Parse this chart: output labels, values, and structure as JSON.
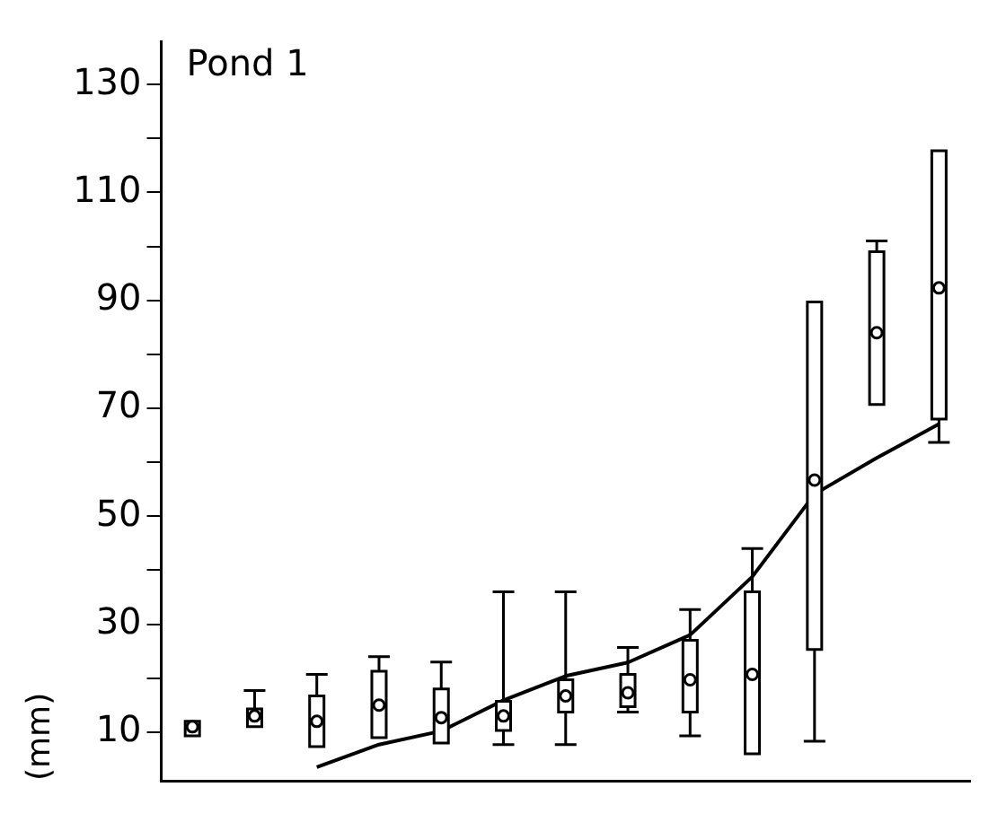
{
  "chart_data": {
    "type": "box",
    "title": "Pond 1",
    "ylabel": "(mm)",
    "categories": [
      null,
      null,
      null,
      null,
      null,
      null,
      null,
      null,
      null,
      null,
      null,
      null,
      null
    ],
    "boxes": [
      {
        "low": 9.3,
        "q1": 9.3,
        "median": 11,
        "q3": 12,
        "high": 12
      },
      {
        "low": 11,
        "q1": 11,
        "median": 13,
        "q3": 14.3,
        "high": 17.7
      },
      {
        "low": 7.3,
        "q1": 7.3,
        "median": 12,
        "q3": 16.7,
        "high": 20.7
      },
      {
        "low": 9,
        "q1": 9,
        "median": 15,
        "q3": 21.3,
        "high": 24
      },
      {
        "low": 8,
        "q1": 8,
        "median": 12.7,
        "q3": 18,
        "high": 23
      },
      {
        "low": 7.7,
        "q1": 10.3,
        "median": 13,
        "q3": 15.7,
        "high": 36
      },
      {
        "low": 7.7,
        "q1": 13.7,
        "median": 16.7,
        "q3": 19.7,
        "high": 36
      },
      {
        "low": 13.7,
        "q1": 14.7,
        "median": 17.3,
        "q3": 20.7,
        "high": 25.7
      },
      {
        "low": 9.3,
        "q1": 13.7,
        "median": 19.7,
        "q3": 27,
        "high": 32.7
      },
      {
        "low": 6,
        "q1": 6,
        "median": 20.7,
        "q3": 36,
        "high": 44
      },
      {
        "low": 8.3,
        "q1": 25.3,
        "median": 56.7,
        "q3": 89.7,
        "high": 89.7
      },
      {
        "low": 70.7,
        "q1": 70.7,
        "median": 84,
        "q3": 99,
        "high": 101
      },
      {
        "low": 63.7,
        "q1": 68,
        "median": 92.3,
        "q3": 117.7,
        "high": 117.7
      }
    ],
    "series": [
      {
        "type": "line",
        "color": "#000000",
        "values": [
          null,
          null,
          3.5,
          7.7,
          10.2,
          15.9,
          20.4,
          22.9,
          28,
          38.8,
          54.1,
          60.8,
          67.1
        ]
      }
    ],
    "ylim": [
      1,
      138
    ],
    "yticks": [
      10,
      {
        "value": 20,
        "label": null
      },
      30,
      {
        "value": 40,
        "label": null
      },
      50,
      {
        "value": 60,
        "label": null
      },
      70,
      {
        "value": 80,
        "label": null
      },
      90,
      {
        "value": 100,
        "label": null
      },
      110,
      {
        "value": 120,
        "label": null
      },
      130
    ],
    "tick_labels": "y",
    "grid": false,
    "legend": false
  }
}
